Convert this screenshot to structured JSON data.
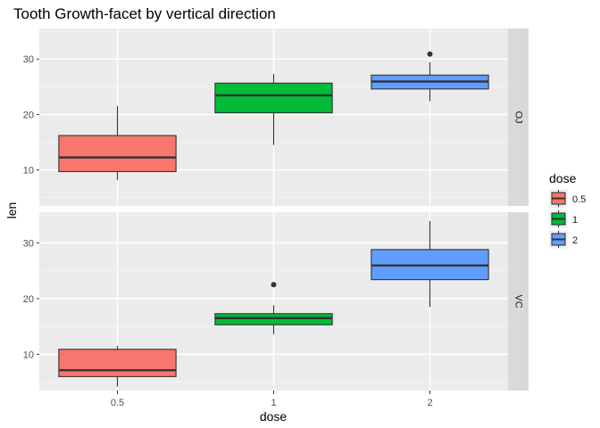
{
  "chart_data": {
    "type": "boxplot",
    "title": "Tooth Growth-facet by vertical direction",
    "xlabel": "dose",
    "ylabel": "len",
    "categories": [
      "0.5",
      "1",
      "2"
    ],
    "ylim": [
      3.5,
      35.5
    ],
    "yticks": [
      10,
      20,
      30
    ],
    "grid": true,
    "legend": {
      "title": "dose",
      "position": "right",
      "entries": [
        {
          "label": "0.5",
          "color": "#F8766D"
        },
        {
          "label": "1",
          "color": "#00BA38"
        },
        {
          "label": "2",
          "color": "#619CFF"
        }
      ]
    },
    "facets": [
      {
        "label": "OJ",
        "boxes": [
          {
            "category": "0.5",
            "min": 8.2,
            "q1": 9.7,
            "median": 12.25,
            "q3": 16.2,
            "max": 21.5,
            "outliers": []
          },
          {
            "category": "1",
            "min": 14.5,
            "q1": 20.3,
            "median": 23.45,
            "q3": 25.65,
            "max": 27.3,
            "outliers": []
          },
          {
            "category": "2",
            "min": 22.4,
            "q1": 24.6,
            "median": 25.95,
            "q3": 27.1,
            "max": 29.4,
            "outliers": [
              30.9
            ]
          }
        ]
      },
      {
        "label": "VC",
        "boxes": [
          {
            "category": "0.5",
            "min": 4.2,
            "q1": 6.0,
            "median": 7.15,
            "q3": 10.9,
            "max": 11.5,
            "outliers": []
          },
          {
            "category": "1",
            "min": 13.6,
            "q1": 15.3,
            "median": 16.5,
            "q3": 17.3,
            "max": 18.8,
            "outliers": [
              22.5
            ]
          },
          {
            "category": "2",
            "min": 18.5,
            "q1": 23.4,
            "median": 25.95,
            "q3": 28.8,
            "max": 33.9,
            "outliers": []
          }
        ]
      }
    ]
  }
}
